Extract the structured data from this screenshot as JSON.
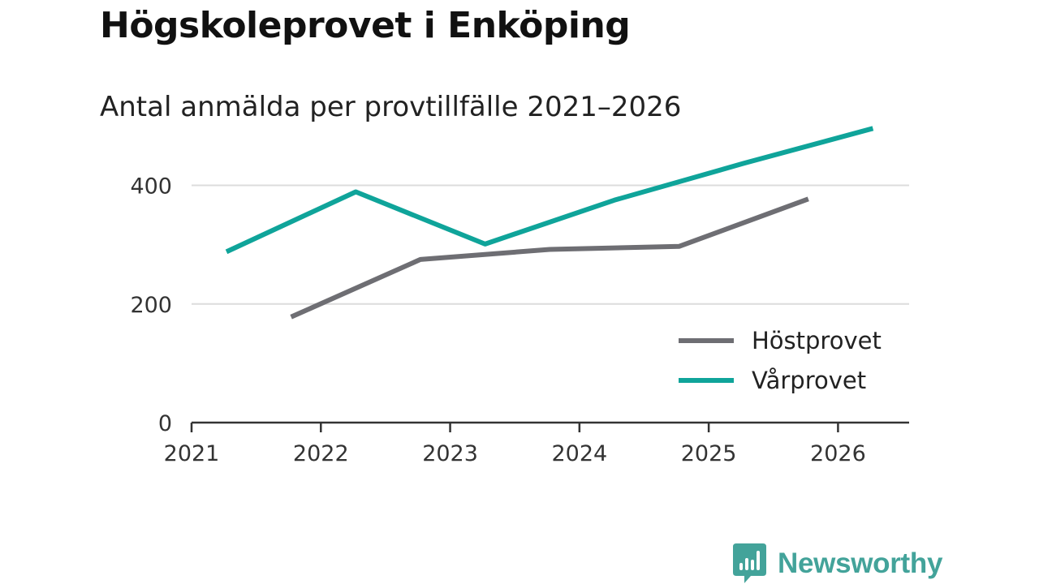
{
  "header": {
    "title": "Högskoleprovet i Enköping",
    "subtitle": "Antal anmälda per provtillfälle 2021–2026"
  },
  "branding": {
    "name": "Newsworthy",
    "color": "#43a39a"
  },
  "chart_data": {
    "type": "line",
    "title": "Högskoleprovet i Enköping",
    "subtitle": "Antal anmälda per provtillfälle 2021–2026",
    "xlabel": "",
    "ylabel": "",
    "xlim": [
      2021,
      2026.55
    ],
    "ylim": [
      0,
      480
    ],
    "yticks": [
      0,
      200,
      400
    ],
    "xticks": [
      2021,
      2022,
      2023,
      2024,
      2025,
      2026
    ],
    "grid": true,
    "legend_position": "bottom-right",
    "series": [
      {
        "name": "Höstprovet",
        "color": "#6e6e73",
        "x": [
          2021.77,
          2022.77,
          2023.77,
          2024.77,
          2025.77
        ],
        "values": [
          178,
          275,
          292,
          297,
          377
        ]
      },
      {
        "name": "Vårprovet",
        "color": "#0fa49a",
        "x": [
          2021.27,
          2022.27,
          2023.27,
          2024.27,
          2025.27,
          2026.27
        ],
        "values": [
          288,
          389,
          301,
          375,
          437,
          496
        ]
      }
    ]
  }
}
